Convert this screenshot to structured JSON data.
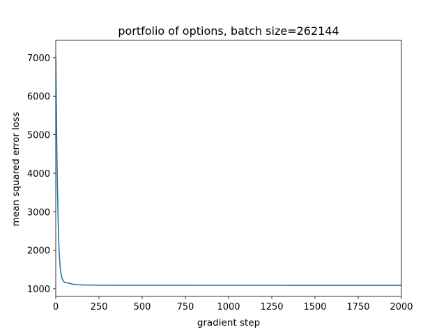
{
  "chart_data": {
    "type": "line",
    "title": "portfolio of options, batch size=262144",
    "xlabel": "gradient step",
    "ylabel": "mean squared error loss",
    "xlim": [
      0,
      2000
    ],
    "ylim": [
      800,
      7450
    ],
    "xticks": [
      0,
      250,
      500,
      750,
      1000,
      1250,
      1500,
      1750,
      2000
    ],
    "yticks": [
      1000,
      2000,
      3000,
      4000,
      5000,
      6000,
      7000
    ],
    "grid": false,
    "series": [
      {
        "name": "loss",
        "color": "#1f77b4",
        "x": [
          0,
          2,
          4,
          6,
          8,
          10,
          12,
          15,
          18,
          21,
          25,
          30,
          35,
          40,
          45,
          50,
          55,
          60,
          70,
          80,
          90,
          100,
          125,
          150,
          175,
          200,
          250,
          300,
          400,
          500,
          600,
          750,
          900,
          1000,
          1100,
          1250,
          1400,
          1500,
          1600,
          1750,
          1900,
          2000
        ],
        "y": [
          7000,
          6150,
          5400,
          4700,
          4100,
          3600,
          3150,
          2600,
          2150,
          1850,
          1580,
          1400,
          1290,
          1230,
          1195,
          1170,
          1160,
          1155,
          1150,
          1140,
          1128,
          1115,
          1105,
          1100,
          1097,
          1095,
          1093,
          1092,
          1091,
          1091,
          1090,
          1090,
          1089,
          1089,
          1089,
          1089,
          1088,
          1088,
          1088,
          1088,
          1088,
          1088
        ]
      }
    ]
  }
}
